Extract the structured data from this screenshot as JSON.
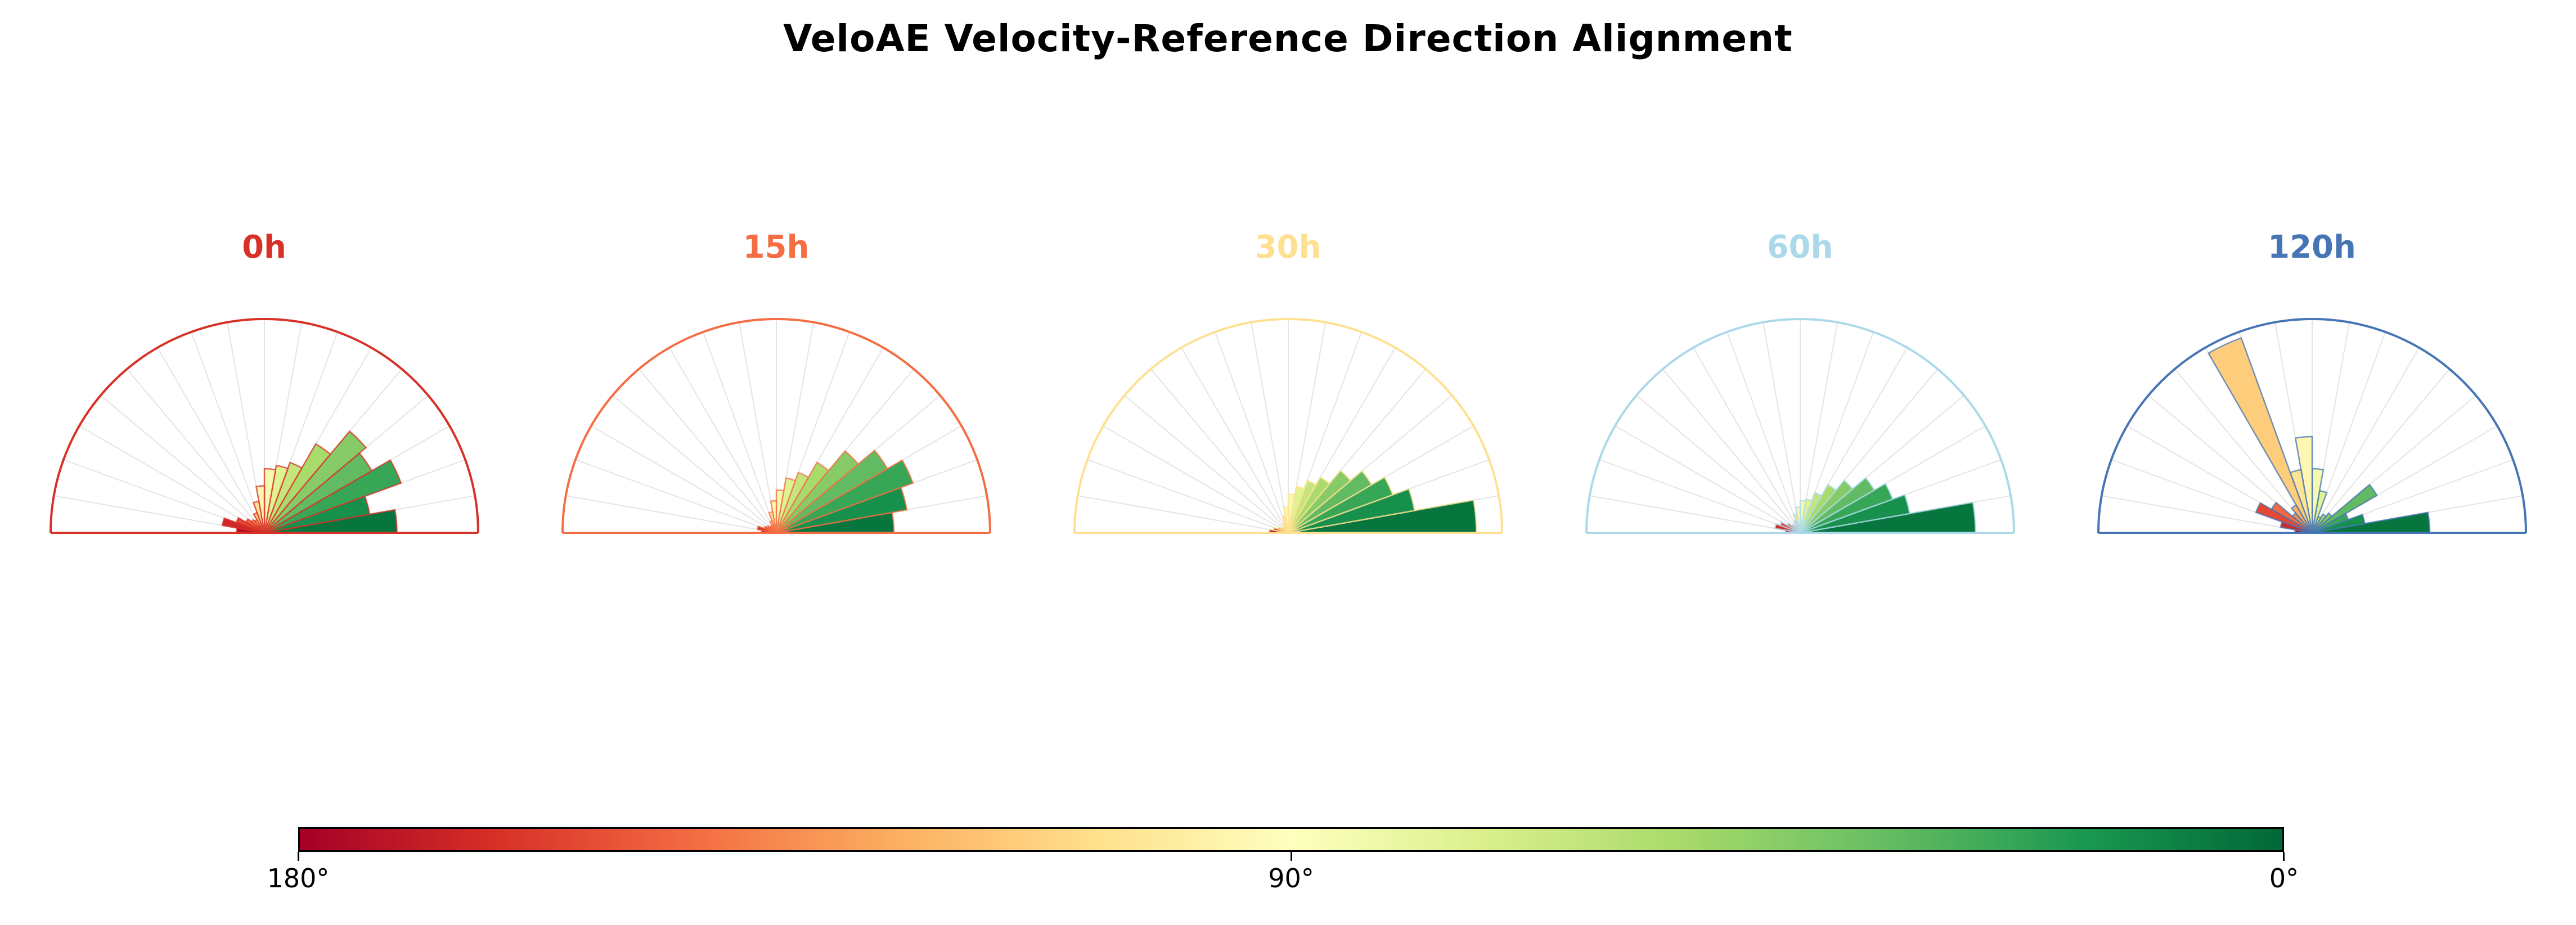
{
  "title": "VeloAE Velocity-Reference Direction Alignment",
  "colors": {
    "background": "#ffffff",
    "grid": "#e4e4e4",
    "text": "#000000"
  },
  "chart_data": {
    "type": "polar_histogram",
    "title": "VeloAE Velocity-Reference Direction Alignment",
    "layout": "5 half-circle (0°–180°) rose histograms in a row, shared angular colormap, horizontal colorbar below",
    "angle_range_deg": [
      0,
      180
    ],
    "bin_width_deg": 10,
    "rlim": [
      0,
      1
    ],
    "grid": "radial spokes every 10°",
    "colormap": "RdYlGn mapped by angle: 180°=red, 90°=pale yellow, 0°=green",
    "colormap_stops": [
      "#a50026",
      "#d73027",
      "#f46d43",
      "#fdae61",
      "#fee08b",
      "#ffffbf",
      "#d9ef8b",
      "#a6d96a",
      "#66bd63",
      "#1a9850",
      "#006837"
    ],
    "panels": [
      {
        "label": "0h",
        "accent": "#d73027",
        "bin_start_deg": [
          0,
          10,
          20,
          30,
          40,
          50,
          60,
          70,
          80,
          90,
          100,
          110,
          120,
          130,
          140,
          150,
          160,
          170
        ],
        "values": [
          0.62,
          0.5,
          0.68,
          0.58,
          0.62,
          0.48,
          0.35,
          0.32,
          0.3,
          0.22,
          0.15,
          0.1,
          0.07,
          0.08,
          0.1,
          0.14,
          0.2,
          0.13
        ]
      },
      {
        "label": "15h",
        "accent": "#f46d43",
        "bin_start_deg": [
          0,
          10,
          20,
          30,
          40,
          50,
          60,
          70,
          80,
          90,
          100,
          110,
          120,
          130,
          140,
          150,
          160,
          170
        ],
        "values": [
          0.55,
          0.62,
          0.68,
          0.6,
          0.5,
          0.38,
          0.3,
          0.26,
          0.2,
          0.15,
          0.1,
          0.06,
          0.04,
          0.04,
          0.05,
          0.06,
          0.09,
          0.07
        ]
      },
      {
        "label": "30h",
        "accent": "#fee090",
        "bin_start_deg": [
          0,
          10,
          20,
          30,
          40,
          50,
          60,
          70,
          80,
          90,
          100,
          110,
          120,
          130,
          140,
          150,
          160,
          170
        ],
        "values": [
          0.88,
          0.6,
          0.52,
          0.45,
          0.38,
          0.3,
          0.26,
          0.22,
          0.18,
          0.12,
          0.08,
          0.05,
          0.03,
          0.03,
          0.04,
          0.05,
          0.07,
          0.09
        ]
      },
      {
        "label": "60h",
        "accent": "#abd9e9",
        "bin_start_deg": [
          0,
          10,
          20,
          30,
          40,
          50,
          60,
          70,
          80,
          90,
          100,
          110,
          120,
          130,
          140,
          150,
          160,
          170
        ],
        "values": [
          0.82,
          0.52,
          0.46,
          0.4,
          0.32,
          0.26,
          0.2,
          0.16,
          0.15,
          0.12,
          0.09,
          0.06,
          0.04,
          0.05,
          0.07,
          0.1,
          0.12,
          0.07
        ]
      },
      {
        "label": "120h",
        "accent": "#4575b4",
        "bin_start_deg": [
          0,
          10,
          20,
          30,
          40,
          50,
          60,
          70,
          80,
          90,
          100,
          110,
          120,
          130,
          140,
          150,
          160,
          170
        ],
        "values": [
          0.55,
          0.25,
          0.18,
          0.35,
          0.12,
          0.1,
          0.08,
          0.2,
          0.3,
          0.45,
          0.3,
          0.97,
          0.15,
          0.12,
          0.22,
          0.28,
          0.15,
          0.08
        ]
      }
    ],
    "colorbar": {
      "orientation": "horizontal",
      "range_deg": [
        180,
        0
      ],
      "labels": [
        "180°",
        "90°",
        "0°"
      ],
      "tick_positions_pct": [
        0,
        50,
        100
      ]
    }
  }
}
